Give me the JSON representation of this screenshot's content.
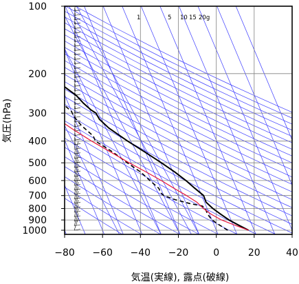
{
  "chart_data": {
    "type": "line",
    "subtype": "skew-T log-P diagram",
    "xlabel": "気温(実線), 露点(破線)",
    "ylabel": "気圧(hPa)",
    "xlim": [
      -80,
      40
    ],
    "ylim": [
      1050,
      100
    ],
    "y_scale": "log",
    "x_ticks": [
      -80,
      -60,
      -40,
      -20,
      0,
      20,
      40
    ],
    "x_tick_labels": [
      "−80",
      "−60",
      "−40",
      "−20",
      "0",
      "20",
      "40"
    ],
    "y_ticks": [
      100,
      200,
      300,
      400,
      500,
      600,
      700,
      800,
      900,
      1000
    ],
    "y_tick_labels": [
      "100",
      "200",
      "300",
      "400",
      "500",
      "600",
      "700",
      "800",
      "900",
      "1000"
    ],
    "mixing_ratio_labels": [
      "1",
      "5",
      "10",
      "15",
      "20g"
    ],
    "colors": {
      "temperature": "#000000",
      "dewpoint": "#000000",
      "parcel": "#e8163c",
      "background_lines": "#3a3aff",
      "grid": "#808080"
    },
    "series": [
      {
        "points": [
          [
            1000,
            17
          ],
          [
            950,
            13
          ],
          [
            900,
            9
          ],
          [
            850,
            6
          ],
          [
            800,
            3
          ],
          [
            750,
            0.8
          ],
          [
            700,
            1
          ],
          [
            650,
            -2
          ],
          [
            600,
            -5
          ],
          [
            550,
            -9
          ],
          [
            500,
            -14
          ],
          [
            450,
            -20
          ],
          [
            400,
            -27
          ],
          [
            350,
            -34
          ],
          [
            320,
            -37
          ],
          [
            300,
            -37.5
          ],
          [
            290,
            -39.5
          ],
          [
            270,
            -42
          ],
          [
            250,
            -44
          ],
          [
            230,
            -48
          ],
          [
            220,
            -50
          ],
          [
            200,
            -51
          ],
          [
            180,
            -52
          ],
          [
            160,
            -54
          ],
          [
            140,
            -55
          ],
          [
            120,
            -56
          ],
          [
            100,
            -57
          ]
        ]
      },
      {
        "points": [
          [
            1000,
            6
          ],
          [
            950,
            3
          ],
          [
            900,
            0
          ],
          [
            850,
            -1
          ],
          [
            800,
            -1
          ],
          [
            780,
            -2
          ],
          [
            760,
            -8
          ],
          [
            730,
            -15
          ],
          [
            700,
            -20
          ],
          [
            680,
            -21
          ],
          [
            650,
            -21
          ],
          [
            600,
            -24
          ],
          [
            550,
            -27
          ],
          [
            500,
            -32
          ],
          [
            450,
            -37
          ],
          [
            420,
            -41
          ],
          [
            400,
            -44
          ],
          [
            380,
            -44
          ],
          [
            340,
            -48
          ],
          [
            310,
            -50
          ],
          [
            295,
            -50
          ],
          [
            280,
            -52
          ],
          [
            280,
            -74
          ],
          [
            280,
            -80
          ]
        ]
      },
      {
        "points": [
          [
            1000,
            17
          ],
          [
            950,
            11
          ],
          [
            900,
            5
          ],
          [
            850,
            1
          ],
          [
            800,
            -2
          ],
          [
            750,
            -4
          ],
          [
            700,
            -8
          ],
          [
            650,
            -13
          ],
          [
            600,
            -18
          ],
          [
            550,
            -24
          ],
          [
            500,
            -31
          ],
          [
            450,
            -38
          ],
          [
            400,
            -46
          ],
          [
            350,
            -54
          ],
          [
            300,
            -62
          ],
          [
            250,
            -72
          ],
          [
            200,
            -85
          ]
        ]
      }
    ]
  }
}
